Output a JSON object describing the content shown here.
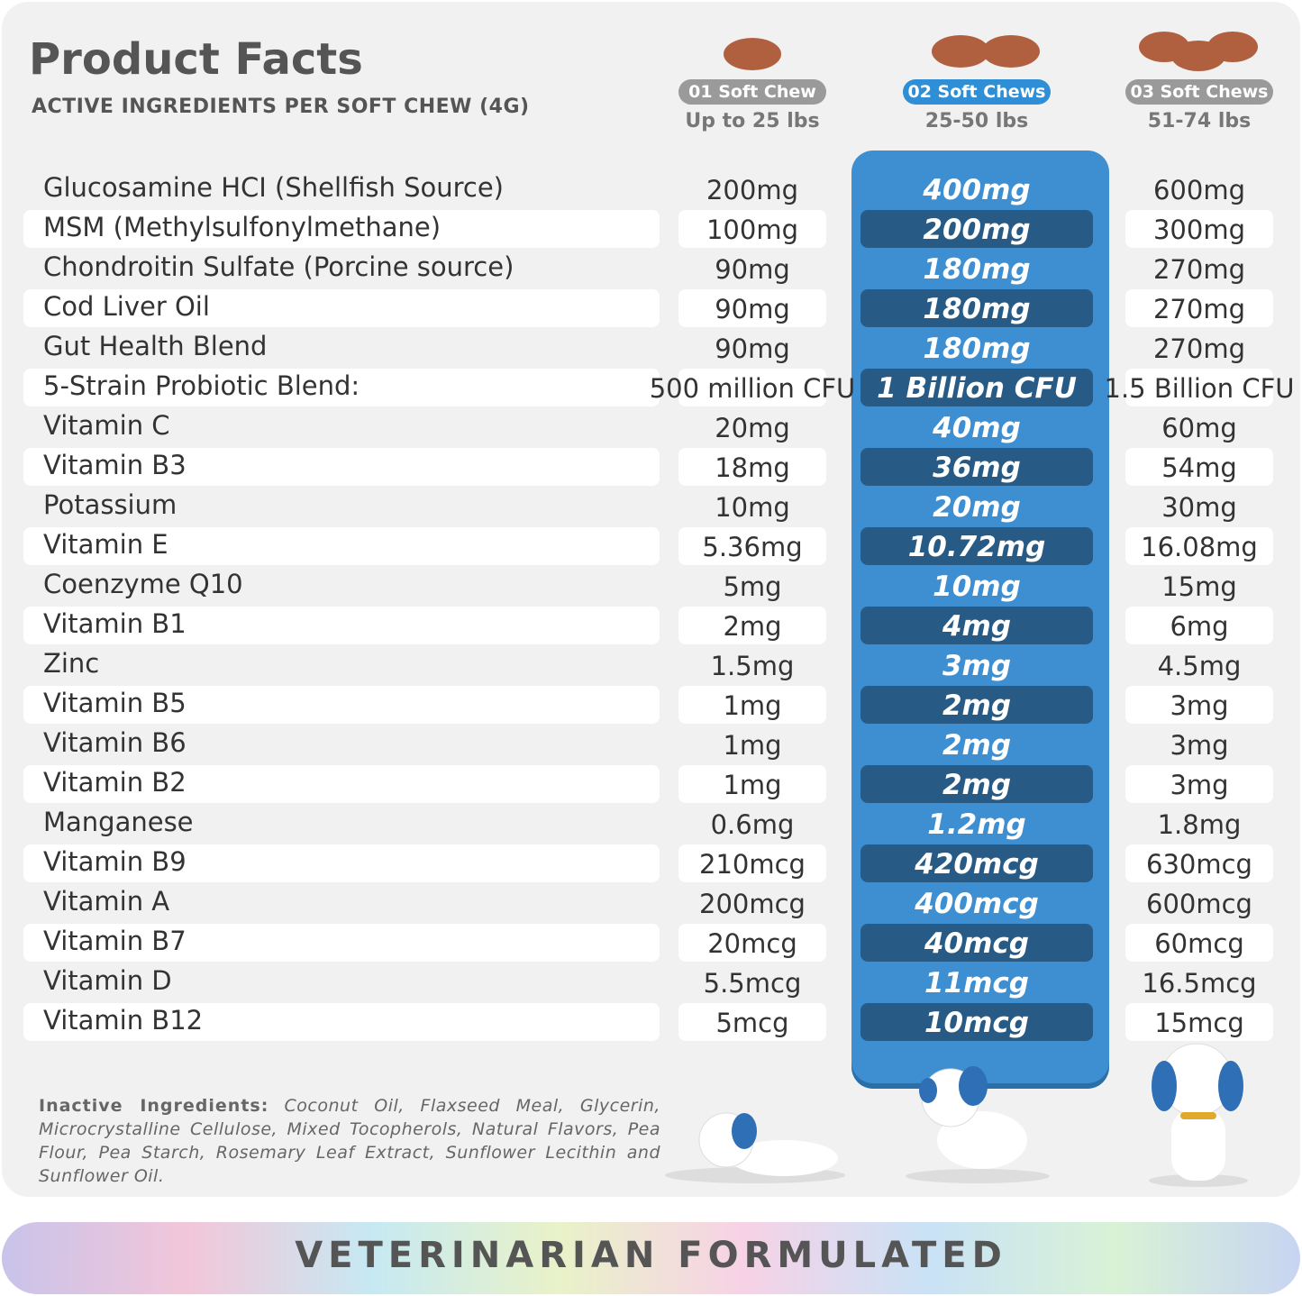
{
  "header": {
    "title": "Product Facts",
    "subtitle": "ACTIVE INGREDIENTS PER SOFT CHEW (4G)"
  },
  "columns": [
    {
      "label": "01 Soft Chew",
      "weight": "Up to 25 lbs"
    },
    {
      "label": "02 Soft Chews",
      "weight": "25-50 lbs"
    },
    {
      "label": "03 Soft Chews",
      "weight": "51-74 lbs"
    }
  ],
  "rows": [
    [
      "Glucosamine HCI (Shellfish Source)",
      "200mg",
      "400mg",
      "600mg"
    ],
    [
      "MSM (Methylsulfonylmethane)",
      "100mg",
      "200mg",
      "300mg"
    ],
    [
      "Chondroitin Sulfate (Porcine source)",
      "90mg",
      "180mg",
      "270mg"
    ],
    [
      "Cod Liver Oil",
      "90mg",
      "180mg",
      "270mg"
    ],
    [
      "Gut Health Blend",
      "90mg",
      "180mg",
      "270mg"
    ],
    [
      "5-Strain Probiotic Blend:",
      "500 million CFU",
      "1 Billion CFU",
      "1.5 Billion CFU"
    ],
    [
      "Vitamin C",
      "20mg",
      "40mg",
      "60mg"
    ],
    [
      "Vitamin B3",
      "18mg",
      "36mg",
      "54mg"
    ],
    [
      "Potassium",
      "10mg",
      "20mg",
      "30mg"
    ],
    [
      "Vitamin E",
      "5.36mg",
      "10.72mg",
      "16.08mg"
    ],
    [
      "Coenzyme Q10",
      "5mg",
      "10mg",
      "15mg"
    ],
    [
      "Vitamin B1",
      "2mg",
      "4mg",
      "6mg"
    ],
    [
      "Zinc",
      "1.5mg",
      "3mg",
      "4.5mg"
    ],
    [
      "Vitamin B5",
      "1mg",
      "2mg",
      "3mg"
    ],
    [
      "Vitamin B6",
      "1mg",
      "2mg",
      "3mg"
    ],
    [
      "Vitamin B2",
      "1mg",
      "2mg",
      "3mg"
    ],
    [
      "Manganese",
      "0.6mg",
      "1.2mg",
      "1.8mg"
    ],
    [
      "Vitamin B9",
      "210mcg",
      "420mcg",
      "630mcg"
    ],
    [
      "Vitamin A",
      "200mcg",
      "400mcg",
      "600mcg"
    ],
    [
      "Vitamin B7",
      "20mcg",
      "40mcg",
      "60mcg"
    ],
    [
      "Vitamin D",
      "5.5mcg",
      "11mcg",
      "16.5mcg"
    ],
    [
      "Vitamin B12",
      "5mcg",
      "10mcg",
      "15mcg"
    ]
  ],
  "inactive": {
    "label": "Inactive Ingredients:",
    "text": "Coconut Oil, Flaxseed Meal, Glycerin, Microcrystalline Cellulose, Mixed Tocopherols, Natural Flavors, Pea Flour, Pea Starch, Rosemary Leaf Extract, Sunflower Lecithin and Sunflower Oil."
  },
  "footer": "VETERINARIAN FORMULATED"
}
